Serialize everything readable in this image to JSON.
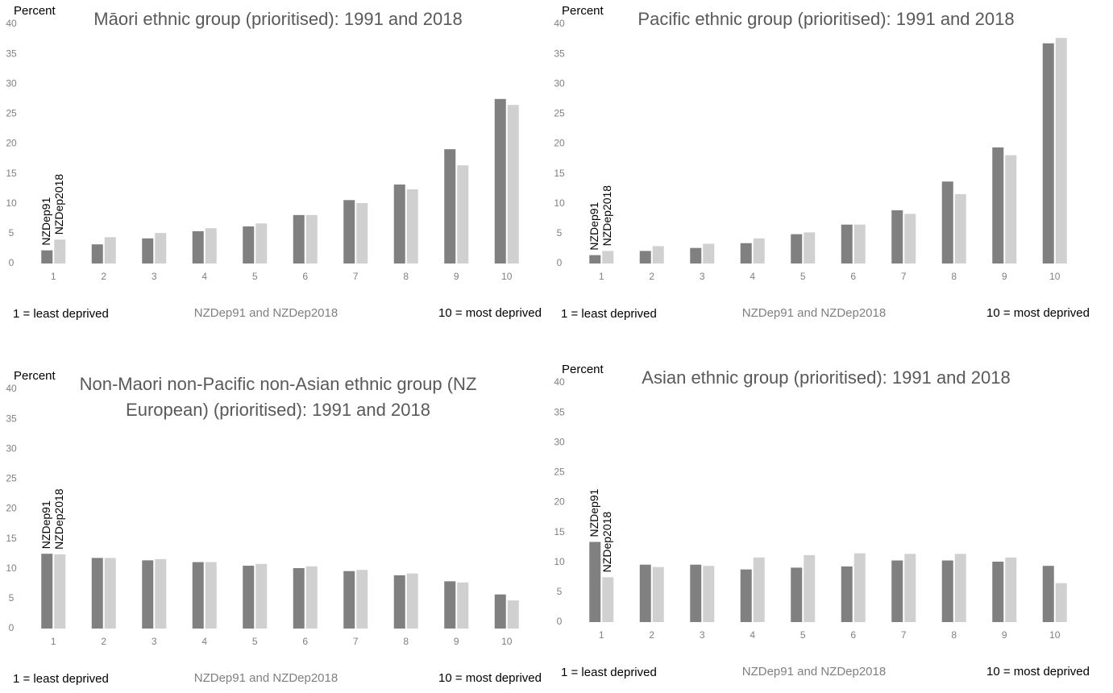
{
  "chart_data": [
    {
      "type": "bar",
      "title": "Māori ethnic group (prioritised): 1991 and 2018",
      "ylabel": "Percent",
      "xlabel": "NZDep91 and NZDep2018",
      "note_left": "1 = least deprived",
      "note_right": "10 = most deprived",
      "categories": [
        "1",
        "2",
        "3",
        "4",
        "5",
        "6",
        "7",
        "8",
        "9",
        "10"
      ],
      "series": [
        {
          "name": "NZDep91",
          "color": "#808080",
          "values": [
            2.2,
            3.2,
            4.2,
            5.4,
            6.2,
            8.1,
            10.6,
            13.2,
            19.1,
            27.5
          ]
        },
        {
          "name": "NZDep2018",
          "color": "#d0d0d0",
          "values": [
            4.0,
            4.4,
            5.1,
            5.9,
            6.7,
            8.1,
            10.1,
            12.4,
            16.4,
            26.5
          ]
        }
      ],
      "ylim": [
        0,
        40
      ],
      "yticks": [
        0,
        5,
        10,
        15,
        20,
        25,
        30,
        35,
        40
      ]
    },
    {
      "type": "bar",
      "title": "Pacific ethnic group (prioritised): 1991 and 2018",
      "ylabel": "Percent",
      "xlabel": "NZDep91 and NZDep2018",
      "note_left": "1 = least deprived",
      "note_right": "10 = most deprived",
      "categories": [
        "1",
        "2",
        "3",
        "4",
        "5",
        "6",
        "7",
        "8",
        "9",
        "10"
      ],
      "series": [
        {
          "name": "NZDep91",
          "color": "#808080",
          "values": [
            1.4,
            2.1,
            2.6,
            3.4,
            4.9,
            6.5,
            8.9,
            13.7,
            19.4,
            36.8
          ]
        },
        {
          "name": "NZDep2018",
          "color": "#d0d0d0",
          "values": [
            2.1,
            2.9,
            3.3,
            4.2,
            5.2,
            6.5,
            8.3,
            11.6,
            18.1,
            37.7
          ]
        }
      ],
      "ylim": [
        0,
        40
      ],
      "yticks": [
        0,
        5,
        10,
        15,
        20,
        25,
        30,
        35,
        40
      ]
    },
    {
      "type": "bar",
      "title": "Non-Maori non-Pacific non-Asian ethnic group (NZ European) (prioritised): 1991 and 2018",
      "ylabel": "Percent",
      "xlabel": "NZDep91 and NZDep2018",
      "note_left": "1 = least deprived",
      "note_right": "10 = most deprived",
      "categories": [
        "1",
        "2",
        "3",
        "4",
        "5",
        "6",
        "7",
        "8",
        "9",
        "10"
      ],
      "series": [
        {
          "name": "NZDep91",
          "color": "#808080",
          "values": [
            12.5,
            11.8,
            11.4,
            11.1,
            10.5,
            10.1,
            9.6,
            8.9,
            7.9,
            5.7
          ]
        },
        {
          "name": "NZDep2018",
          "color": "#d0d0d0",
          "values": [
            12.4,
            11.8,
            11.6,
            11.1,
            10.8,
            10.4,
            9.8,
            9.2,
            7.7,
            4.7
          ]
        }
      ],
      "ylim": [
        0,
        40
      ],
      "yticks": [
        0,
        5,
        10,
        15,
        20,
        25,
        30,
        35,
        40
      ]
    },
    {
      "type": "bar",
      "title": "Asian ethnic group (prioritised): 1991 and 2018",
      "ylabel": "Percent",
      "xlabel": "NZDep91 and NZDep2018",
      "note_left": "1 = least deprived",
      "note_right": "10 = most deprived",
      "categories": [
        "1",
        "2",
        "3",
        "4",
        "5",
        "6",
        "7",
        "8",
        "9",
        "10"
      ],
      "series": [
        {
          "name": "NZDep91",
          "color": "#808080",
          "values": [
            13.4,
            9.6,
            9.6,
            8.8,
            9.1,
            9.3,
            10.3,
            10.3,
            10.1,
            9.4
          ]
        },
        {
          "name": "NZDep2018",
          "color": "#d0d0d0",
          "values": [
            7.5,
            9.2,
            9.4,
            10.8,
            11.2,
            11.5,
            11.4,
            11.4,
            10.8,
            6.5
          ]
        }
      ],
      "ylim": [
        0,
        40
      ],
      "yticks": [
        0,
        5,
        10,
        15,
        20,
        25,
        30,
        35,
        40
      ]
    }
  ]
}
